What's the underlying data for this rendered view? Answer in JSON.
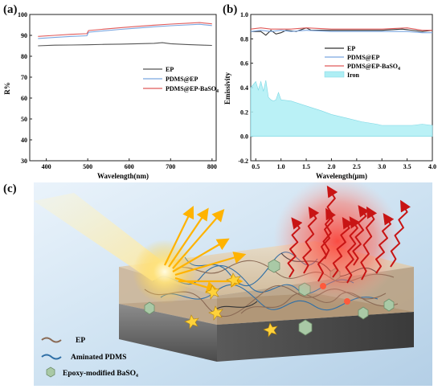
{
  "panels": {
    "a": {
      "label": "(a)"
    },
    "b": {
      "label": "(b)"
    },
    "c": {
      "label": "(c)"
    }
  },
  "chart_data": [
    {
      "type": "line",
      "xlabel": "Wavelength(nm)",
      "ylabel": "R%",
      "xlim": [
        360,
        810
      ],
      "ylim": [
        30,
        100
      ],
      "xticks": [
        400,
        500,
        600,
        700,
        800
      ],
      "yticks": [
        30,
        40,
        50,
        60,
        70,
        80,
        90,
        100
      ],
      "legend_position": "right-middle",
      "series": [
        {
          "name": "EP",
          "color": "#555555",
          "x": [
            380,
            420,
            460,
            500,
            540,
            580,
            620,
            660,
            680,
            700,
            740,
            780,
            800
          ],
          "y": [
            85.0,
            85.3,
            85.4,
            85.5,
            85.7,
            85.8,
            86.0,
            86.2,
            86.5,
            86.0,
            85.6,
            85.3,
            85.2
          ]
        },
        {
          "name": "PDMS@EP",
          "color": "#7aa6e0",
          "x": [
            380,
            420,
            460,
            498,
            502,
            540,
            580,
            620,
            660,
            700,
            740,
            770,
            800
          ],
          "y": [
            88.5,
            89.0,
            89.5,
            89.8,
            91.5,
            92.2,
            92.9,
            93.5,
            94.1,
            94.6,
            95.0,
            95.3,
            94.7
          ]
        },
        {
          "name": "PDMS@EP-BaSO4",
          "color": "#e05a5a",
          "x": [
            380,
            420,
            460,
            498,
            502,
            540,
            580,
            620,
            660,
            700,
            740,
            770,
            800
          ],
          "y": [
            89.5,
            90.0,
            90.5,
            90.8,
            92.3,
            93.0,
            93.7,
            94.3,
            94.9,
            95.4,
            95.8,
            96.1,
            95.5
          ]
        }
      ]
    },
    {
      "type": "line",
      "xlabel": "Wavelength(μm)",
      "ylabel": "Emissivity",
      "xlim": [
        0.4,
        4.0
      ],
      "ylim": [
        -0.2,
        1.0
      ],
      "xticks": [
        0.5,
        1.0,
        1.5,
        2.0,
        2.5,
        3.0,
        3.5,
        4.0
      ],
      "yticks": [
        -0.2,
        0.0,
        0.2,
        0.4,
        0.6,
        0.8,
        1.0
      ],
      "legend_position": "right-upper",
      "series": [
        {
          "name": "EP",
          "color": "#333333",
          "x": [
            0.4,
            0.6,
            0.7,
            0.8,
            0.9,
            1.0,
            1.1,
            1.3,
            1.5,
            1.6,
            1.8,
            2.2,
            2.6,
            3.0,
            3.4,
            3.8,
            4.0
          ],
          "y": [
            0.86,
            0.86,
            0.83,
            0.87,
            0.84,
            0.85,
            0.87,
            0.86,
            0.89,
            0.87,
            0.87,
            0.87,
            0.87,
            0.87,
            0.88,
            0.86,
            0.87
          ]
        },
        {
          "name": "PDMS@EP",
          "color": "#7aa6e0",
          "x": [
            0.4,
            0.6,
            0.8,
            1.0,
            1.2,
            1.5,
            2.0,
            2.5,
            3.0,
            3.5,
            3.8,
            4.0
          ],
          "y": [
            0.86,
            0.87,
            0.86,
            0.87,
            0.86,
            0.87,
            0.86,
            0.86,
            0.86,
            0.86,
            0.85,
            0.85
          ]
        },
        {
          "name": "PDMS@EP-BaSO4",
          "color": "#e05a5a",
          "x": [
            0.4,
            0.6,
            0.8,
            1.0,
            1.2,
            1.5,
            2.0,
            2.5,
            3.0,
            3.5,
            3.8,
            4.0
          ],
          "y": [
            0.88,
            0.89,
            0.88,
            0.88,
            0.88,
            0.89,
            0.88,
            0.88,
            0.88,
            0.89,
            0.87,
            0.87
          ]
        },
        {
          "name": "Iron",
          "color": "#aeeef4",
          "fill": true,
          "x": [
            0.4,
            0.5,
            0.55,
            0.6,
            0.65,
            0.7,
            0.75,
            0.8,
            0.85,
            0.9,
            0.95,
            1.0,
            1.2,
            1.5,
            1.8,
            2.0,
            2.3,
            2.6,
            2.9,
            3.0,
            3.3,
            3.6,
            3.8,
            4.0
          ],
          "y": [
            0.4,
            0.45,
            0.38,
            0.45,
            0.37,
            0.46,
            0.32,
            0.3,
            0.29,
            0.3,
            0.36,
            0.3,
            0.29,
            0.25,
            0.21,
            0.18,
            0.15,
            0.12,
            0.1,
            0.09,
            0.09,
            0.09,
            0.1,
            0.09
          ]
        }
      ]
    }
  ],
  "schematic": {
    "legend": [
      {
        "label": "EP",
        "color": "#8a6a55"
      },
      {
        "label": "Aminated PDMS",
        "color": "#2f6fa6"
      },
      {
        "label": "Epoxy-modified BaSO₄",
        "color": "#a9c9a6"
      }
    ],
    "colors": {
      "sun": "#ffd54a",
      "heat": "#d81b1b",
      "slab_top": "#d9c3a1",
      "base": "#6e6e6e"
    }
  }
}
